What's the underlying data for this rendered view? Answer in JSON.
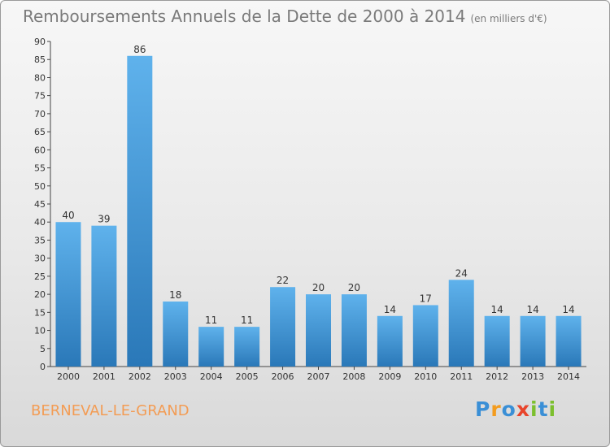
{
  "title": "Remboursements Annuels de la Dette de 2000 à 2014",
  "unit": "(en milliers d'€)",
  "place": "BERNEVAL-LE-GRAND",
  "logo": [
    "P",
    "r",
    "o",
    "x",
    "i",
    "t",
    "i"
  ],
  "colors": {
    "bar_top": "#5fb2ec",
    "bar_bottom": "#2a78b8",
    "place": "#f39c54"
  },
  "chart_data": {
    "type": "bar",
    "title": "Remboursements Annuels de la Dette de 2000 à 2014",
    "categories": [
      "2000",
      "2001",
      "2002",
      "2003",
      "2004",
      "2005",
      "2006",
      "2007",
      "2008",
      "2009",
      "2010",
      "2011",
      "2012",
      "2013",
      "2014"
    ],
    "values": [
      40,
      39,
      86,
      18,
      11,
      11,
      22,
      20,
      20,
      14,
      17,
      24,
      14,
      14,
      14
    ],
    "ylim": [
      0,
      90
    ],
    "yticks": [
      0,
      5,
      10,
      15,
      20,
      25,
      30,
      35,
      40,
      45,
      50,
      55,
      60,
      65,
      70,
      75,
      80,
      85,
      90
    ],
    "grid": false,
    "legend": "none"
  }
}
